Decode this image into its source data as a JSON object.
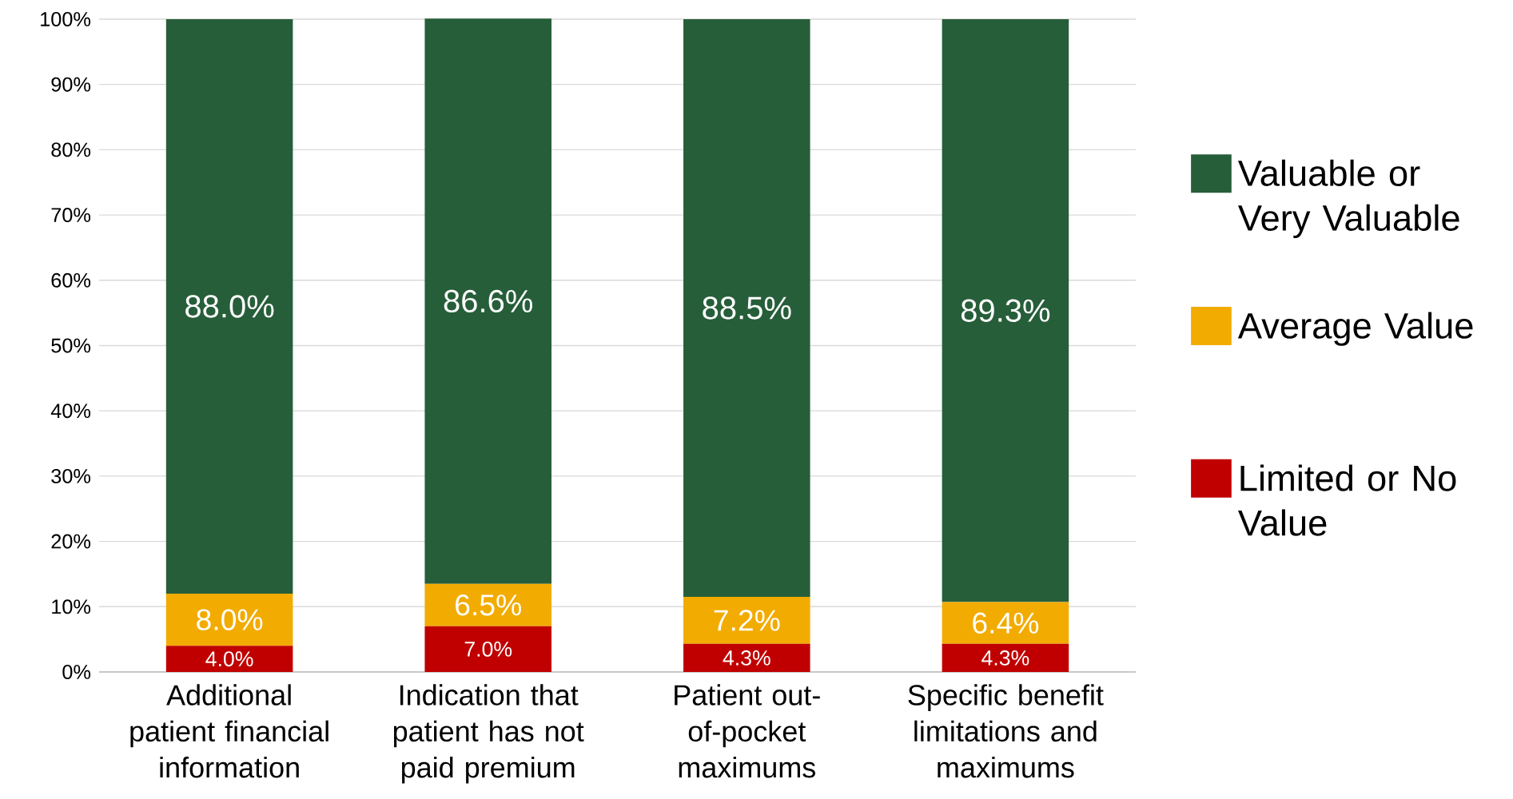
{
  "chart_data": {
    "type": "bar",
    "stacked": true,
    "categories": [
      "Additional patient financial information",
      "Indication that patient has not paid premium",
      "Patient out-of-pocket maximums",
      "Specific benefit limitations and maximums"
    ],
    "series": [
      {
        "name": "Limited or No Value",
        "color": "#c00000",
        "values": [
          4.0,
          7.0,
          4.3,
          4.3
        ],
        "value_labels": [
          "4.0%",
          "7.0%",
          "4.3%",
          "4.3%"
        ]
      },
      {
        "name": "Average Value",
        "color": "#f2ab00",
        "values": [
          8.0,
          6.5,
          7.2,
          6.4
        ],
        "value_labels": [
          "8.0%",
          "6.5%",
          "7.2%",
          "6.4%"
        ]
      },
      {
        "name": "Valuable or Very Valuable",
        "color": "#275e3a",
        "values": [
          88.0,
          86.6,
          88.5,
          89.3
        ],
        "value_labels": [
          "88.0%",
          "86.6%",
          "88.5%",
          "89.3%"
        ]
      }
    ],
    "ylim": [
      0,
      100
    ],
    "yticks": [
      {
        "value": 0,
        "label": "0%"
      },
      {
        "value": 10,
        "label": "10%"
      },
      {
        "value": 20,
        "label": "20%"
      },
      {
        "value": 30,
        "label": "30%"
      },
      {
        "value": 40,
        "label": "40%"
      },
      {
        "value": 50,
        "label": "50%"
      },
      {
        "value": 60,
        "label": "60%"
      },
      {
        "value": 70,
        "label": "70%"
      },
      {
        "value": 80,
        "label": "80%"
      },
      {
        "value": 90,
        "label": "90%"
      },
      {
        "value": 100,
        "label": "100%"
      }
    ],
    "grid": "y",
    "legend": "right"
  }
}
